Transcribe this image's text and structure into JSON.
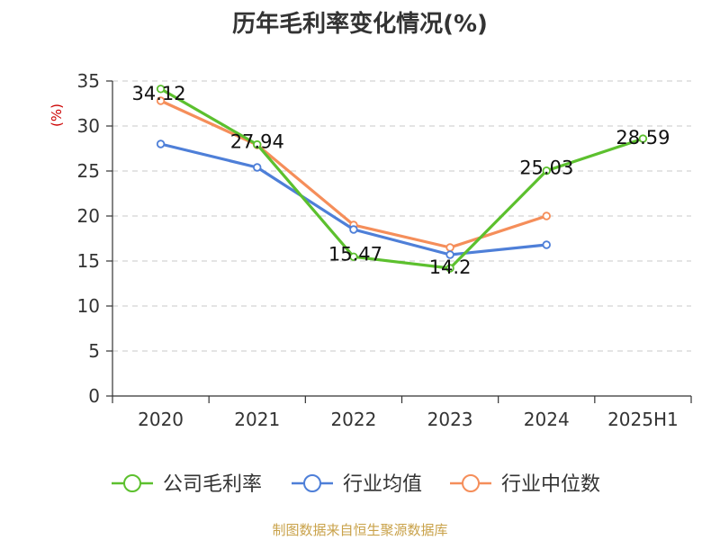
{
  "chart_data": {
    "type": "line",
    "title": "历年毛利率变化情况(%)",
    "ylabel": "(%)",
    "xlabel": "",
    "categories": [
      "2020",
      "2021",
      "2022",
      "2023",
      "2024",
      "2025H1"
    ],
    "ylim": [
      0,
      35
    ],
    "yticks": [
      0,
      5,
      10,
      15,
      20,
      25,
      30,
      35
    ],
    "grid": true,
    "legend_position": "bottom",
    "series": [
      {
        "name": "公司毛利率",
        "color": "#5cc02e",
        "values": [
          34.12,
          27.94,
          15.47,
          14.2,
          25.03,
          28.59
        ],
        "labels": [
          "34.12",
          "27.94",
          "15.47",
          "14.2",
          "25.03",
          "28.59"
        ]
      },
      {
        "name": "行业均值",
        "color": "#4e7fd8",
        "values": [
          28.0,
          25.4,
          18.5,
          15.7,
          16.8,
          null
        ]
      },
      {
        "name": "行业中位数",
        "color": "#f58e5a",
        "values": [
          32.8,
          27.9,
          19.0,
          16.5,
          20.0,
          null
        ]
      }
    ]
  },
  "footer": {
    "source": "制图数据来自恒生聚源数据库"
  }
}
